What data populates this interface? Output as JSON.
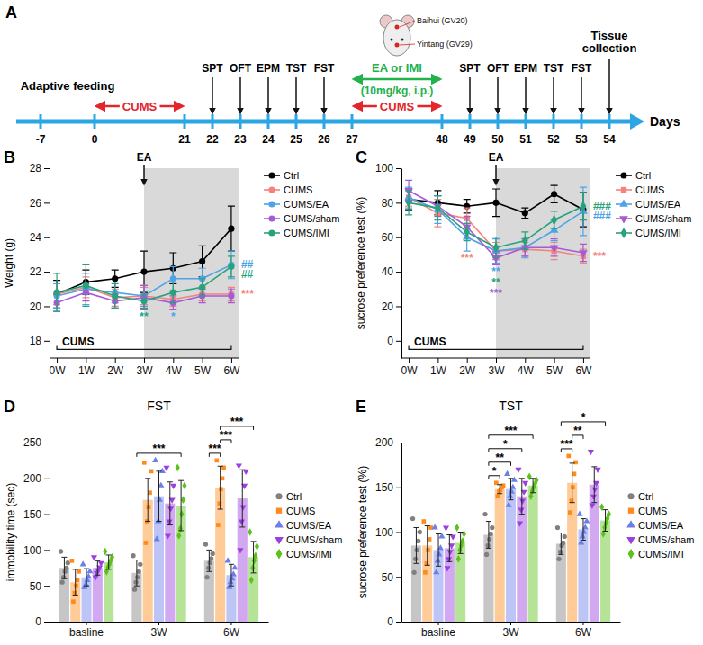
{
  "timeline": {
    "panel_label": "A",
    "ticks": [
      -7,
      0,
      21,
      22,
      23,
      24,
      25,
      26,
      27,
      48,
      49,
      50,
      51,
      52,
      53,
      54
    ],
    "axis_label": "Days",
    "adaptive": {
      "label": "Adaptive feeding",
      "from": -7,
      "to": 0
    },
    "stress": [
      {
        "label": "CUMS",
        "from": 0,
        "to": 21
      },
      {
        "label": "CUMS",
        "from": 27,
        "to": 48
      }
    ],
    "tests": [
      {
        "day": 22,
        "label": "SPT"
      },
      {
        "day": 23,
        "label": "OFT"
      },
      {
        "day": 24,
        "label": "EPM"
      },
      {
        "day": 25,
        "label": "TST"
      },
      {
        "day": 26,
        "label": "FST"
      },
      {
        "day": 49,
        "label": "SPT"
      },
      {
        "day": 50,
        "label": "OFT"
      },
      {
        "day": 51,
        "label": "EPM"
      },
      {
        "day": 52,
        "label": "TST"
      },
      {
        "day": 53,
        "label": "FST"
      }
    ],
    "treatment": {
      "label": "EA or IMI",
      "dose": "(10mg/kg, i.p.)",
      "from": 27,
      "to": 48
    },
    "end": {
      "day": 54,
      "label": "Tissue collection"
    },
    "acupoints": [
      "Baihui (GV20)",
      "Yintang (GV29)"
    ]
  },
  "chart_data": [
    {
      "type": "line",
      "panel_label": "B",
      "y_label": "Weight (g)",
      "categories": [
        "0W",
        "1W",
        "2W",
        "3W",
        "4W",
        "5W",
        "6W"
      ],
      "ylim": [
        17,
        28
      ],
      "yticks": [
        18,
        20,
        22,
        24,
        26,
        28
      ],
      "legend": "right",
      "shade_start": "3W",
      "arrow_annotation": {
        "text": "EA",
        "at": "3W"
      },
      "bracket": {
        "text": "CUMS",
        "from": "0W",
        "to": "6W"
      },
      "series": [
        {
          "name": "Ctrl",
          "color": "#000000",
          "marker": "circle",
          "values": [
            20.7,
            21.4,
            21.6,
            22.0,
            22.2,
            22.6,
            24.5
          ],
          "errors": [
            0.8,
            0.7,
            0.5,
            1.2,
            0.9,
            0.9,
            1.3
          ]
        },
        {
          "name": "CUMS",
          "color": "#f4837d",
          "marker": "circle",
          "values": [
            20.7,
            21.1,
            20.5,
            20.6,
            20.4,
            20.7,
            20.7
          ],
          "errors": [
            0.6,
            0.6,
            0.5,
            0.5,
            0.4,
            0.4,
            0.4
          ]
        },
        {
          "name": "CUMS/EA",
          "color": "#4ea3e6",
          "marker": "circle",
          "values": [
            20.6,
            21.0,
            20.8,
            20.6,
            21.6,
            21.6,
            22.4
          ],
          "errors": [
            0.7,
            0.9,
            0.6,
            0.6,
            0.7,
            0.6,
            0.8
          ]
        },
        {
          "name": "CUMS/sham",
          "color": "#a55ad6",
          "marker": "circle",
          "values": [
            20.2,
            20.8,
            20.3,
            20.5,
            20.2,
            20.6,
            20.6
          ],
          "errors": [
            0.5,
            0.5,
            0.4,
            0.7,
            0.4,
            0.4,
            0.4
          ]
        },
        {
          "name": "CUMS/IMI",
          "color": "#27a27a",
          "marker": "circle",
          "values": [
            20.8,
            21.2,
            20.6,
            20.3,
            20.8,
            21.1,
            22.3
          ],
          "errors": [
            1.1,
            1.2,
            0.7,
            0.4,
            0.6,
            0.5,
            0.6
          ]
        }
      ],
      "annotations": [
        {
          "text": "*",
          "series": "CUMS/EA",
          "at": "4W"
        },
        {
          "text": "**",
          "series": "CUMS/IMI",
          "at": "3W"
        },
        {
          "text": "***",
          "series": "CUMS",
          "at": "6W"
        },
        {
          "text": "##",
          "series": "CUMS/EA",
          "at": "6W"
        },
        {
          "text": "##",
          "series": "CUMS/IMI",
          "at": "6W"
        }
      ]
    },
    {
      "type": "line",
      "panel_label": "C",
      "y_label": "sucrose preference test (%)",
      "categories": [
        "0W",
        "1W",
        "2W",
        "3W",
        "4W",
        "5W",
        "6W"
      ],
      "ylim": [
        -10,
        100
      ],
      "yticks": [
        0,
        20,
        40,
        60,
        80,
        100
      ],
      "legend": "right",
      "shade_start": "3W",
      "arrow_annotation": {
        "text": "EA",
        "at": "3W"
      },
      "bracket": {
        "text": "CUMS",
        "from": "0W",
        "to": "6W"
      },
      "series": [
        {
          "name": "Ctrl",
          "color": "#000000",
          "marker": "circle",
          "values": [
            82,
            80,
            78,
            80,
            74,
            85,
            76
          ],
          "errors": [
            6,
            7,
            4,
            8,
            3,
            5,
            10
          ]
        },
        {
          "name": "CUMS",
          "color": "#f4837d",
          "marker": "square",
          "values": [
            83,
            74,
            71,
            52,
            53,
            52,
            49
          ],
          "errors": [
            5,
            8,
            6,
            5,
            4,
            5,
            4
          ]
        },
        {
          "name": "CUMS/EA",
          "color": "#4ea3e6",
          "marker": "triangle",
          "values": [
            83,
            76,
            60,
            52,
            54,
            64,
            75
          ],
          "errors": [
            6,
            8,
            8,
            7,
            6,
            6,
            14
          ]
        },
        {
          "name": "CUMS/sham",
          "color": "#a55ad6",
          "marker": "triangle-down",
          "values": [
            87,
            78,
            66,
            48,
            54,
            54,
            51
          ],
          "errors": [
            6,
            6,
            6,
            4,
            5,
            5,
            5
          ]
        },
        {
          "name": "CUMS/IMI",
          "color": "#27a27a",
          "marker": "diamond",
          "values": [
            80,
            77,
            63,
            54,
            58,
            70,
            78
          ],
          "errors": [
            7,
            7,
            5,
            6,
            5,
            5,
            8
          ]
        }
      ],
      "annotations": [
        {
          "text": "***",
          "series": "CUMS",
          "at": "2W"
        },
        {
          "text": "**",
          "series": "CUMS/EA",
          "at": "3W"
        },
        {
          "text": "**",
          "series": "CUMS/IMI",
          "at": "3W"
        },
        {
          "text": "***",
          "series": "CUMS/sham",
          "at": "3W"
        },
        {
          "text": "###",
          "series": "CUMS/IMI",
          "at": "6W"
        },
        {
          "text": "###",
          "series": "CUMS/EA",
          "at": "6W"
        },
        {
          "text": "***",
          "series": "CUMS",
          "at": "6W"
        }
      ]
    },
    {
      "type": "bar",
      "panel_label": "D",
      "title": "FST",
      "y_label": "immobility time (sec)",
      "categories": [
        "basline",
        "3W",
        "6W"
      ],
      "ylim": [
        0,
        250
      ],
      "yticks": [
        0,
        50,
        100,
        150,
        200,
        250
      ],
      "legend": "right",
      "series": [
        {
          "name": "Ctrl",
          "color": "#808080",
          "marker": "circle",
          "values": [
            75,
            68,
            85
          ],
          "errors": [
            15,
            18,
            15
          ],
          "points": [
            [
              98,
              82,
              75,
              70,
              62,
              55
            ],
            [
              92,
              80,
              70,
              62,
              55,
              45
            ],
            [
              108,
              95,
              88,
              82,
              75,
              62
            ]
          ]
        },
        {
          "name": "CUMS",
          "color": "#ff8c1a",
          "marker": "square",
          "values": [
            55,
            170,
            187
          ],
          "errors": [
            18,
            30,
            30
          ],
          "points": [
            [
              85,
              70,
              58,
              50,
              40,
              28
            ],
            [
              222,
              210,
              180,
              160,
              140,
              110
            ],
            [
              225,
              215,
              200,
              185,
              165,
              135
            ]
          ]
        },
        {
          "name": "CUMS/EA",
          "color": "#6a7fe8",
          "marker": "triangle",
          "values": [
            62,
            175,
            65
          ],
          "errors": [
            12,
            35,
            15
          ],
          "points": [
            [
              80,
              70,
              63,
              58,
              52,
              48
            ],
            [
              225,
              210,
              190,
              170,
              140,
              115
            ],
            [
              85,
              75,
              66,
              60,
              55,
              48
            ]
          ]
        },
        {
          "name": "CUMS/sham",
          "color": "#9b3fe0",
          "marker": "triangle-down",
          "values": [
            75,
            165,
            172
          ],
          "errors": [
            10,
            30,
            40
          ],
          "points": [
            [
              90,
              82,
              76,
              72,
              68,
              62
            ],
            [
              215,
              190,
              170,
              158,
              140,
              120
            ],
            [
              218,
              210,
              190,
              160,
              140,
              100
            ]
          ]
        },
        {
          "name": "CUMS/IMI",
          "color": "#5cc21a",
          "marker": "diamond",
          "values": [
            83,
            162,
            90
          ],
          "errors": [
            10,
            35,
            22
          ],
          "points": [
            [
              98,
              90,
              85,
              80,
              76,
              70
            ],
            [
              215,
              190,
              170,
              150,
              130,
              120
            ],
            [
              125,
              105,
              92,
              85,
              75,
              58
            ]
          ]
        }
      ],
      "brackets": [
        {
          "group": "3W",
          "from": "Ctrl",
          "to": "CUMS/IMI",
          "text": "***"
        },
        {
          "group": "6W",
          "from": "Ctrl",
          "to": "CUMS",
          "text": "***"
        },
        {
          "group": "6W",
          "from": "CUMS",
          "to": "CUMS/EA",
          "text": "***"
        },
        {
          "group": "6W",
          "from": "CUMS",
          "to": "CUMS/IMI",
          "text": "***"
        }
      ]
    },
    {
      "type": "bar",
      "panel_label": "E",
      "title": "TST",
      "y_label": "sucrose preference test (%)",
      "categories": [
        "basline",
        "3W",
        "6W"
      ],
      "ylim": [
        0,
        200
      ],
      "yticks": [
        0,
        50,
        100,
        150,
        200
      ],
      "legend": "right",
      "series": [
        {
          "name": "Ctrl",
          "color": "#808080",
          "marker": "circle",
          "values": [
            85,
            97,
            87
          ],
          "errors": [
            20,
            15,
            12
          ],
          "points": [
            [
              115,
              100,
              90,
              80,
              70,
              55
            ],
            [
              120,
              105,
              98,
              92,
              85,
              75
            ],
            [
              105,
              95,
              88,
              85,
              78,
              70
            ]
          ]
        },
        {
          "name": "CUMS",
          "color": "#ff8c1a",
          "marker": "square",
          "values": [
            85,
            148,
            155
          ],
          "errors": [
            22,
            5,
            22
          ],
          "points": [
            [
              112,
              105,
              92,
              80,
              65,
              55
            ],
            [
              155,
              152,
              150,
              147,
              145,
              140
            ],
            [
              185,
              178,
              165,
              150,
              135,
              122
            ]
          ]
        },
        {
          "name": "CUMS/EA",
          "color": "#6a7fe8",
          "marker": "triangle",
          "values": [
            80,
            148,
            103
          ],
          "errors": [
            18,
            12,
            12
          ],
          "points": [
            [
              105,
              95,
              82,
              75,
              68,
              55
            ],
            [
              165,
              158,
              150,
              145,
              140,
              130
            ],
            [
              120,
              112,
              105,
              100,
              95,
              88
            ]
          ]
        },
        {
          "name": "CUMS/sham",
          "color": "#9b3fe0",
          "marker": "triangle-down",
          "values": [
            82,
            140,
            153
          ],
          "errors": [
            15,
            20,
            20
          ],
          "points": [
            [
              105,
              95,
              85,
              78,
              70,
              60
            ],
            [
              170,
              155,
              145,
              135,
              125,
              110
            ],
            [
              190,
              170,
              155,
              148,
              140,
              130
            ]
          ]
        },
        {
          "name": "CUMS/IMI",
          "color": "#5cc21a",
          "marker": "diamond",
          "values": [
            88,
            152,
            113
          ],
          "errors": [
            12,
            8,
            12
          ],
          "points": [
            [
              105,
              98,
              90,
              85,
              80,
              70
            ],
            [
              162,
              158,
              154,
              150,
              146,
              140
            ],
            [
              128,
              120,
              115,
              110,
              105,
              98
            ]
          ]
        }
      ],
      "brackets": [
        {
          "group": "3W",
          "from": "Ctrl",
          "to": "CUMS",
          "text": "*"
        },
        {
          "group": "3W",
          "from": "Ctrl",
          "to": "CUMS/EA",
          "text": "**"
        },
        {
          "group": "3W",
          "from": "Ctrl",
          "to": "CUMS/sham",
          "text": "*"
        },
        {
          "group": "3W",
          "from": "Ctrl",
          "to": "CUMS/IMI",
          "text": "***"
        },
        {
          "group": "6W",
          "from": "Ctrl",
          "to": "CUMS",
          "text": "***"
        },
        {
          "group": "6W",
          "from": "CUMS",
          "to": "CUMS/EA",
          "text": "**"
        },
        {
          "group": "6W",
          "from": "Ctrl",
          "to": "CUMS/IMI",
          "text": "*"
        }
      ]
    }
  ]
}
